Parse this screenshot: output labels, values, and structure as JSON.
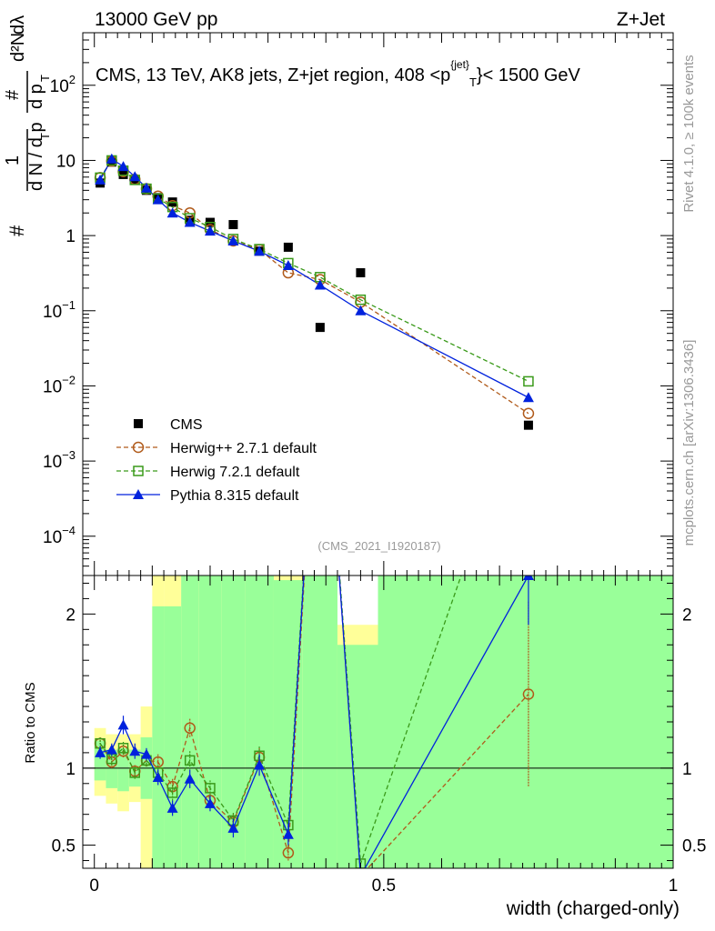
{
  "header": {
    "left": "13000 GeV pp",
    "right": "Z+Jet"
  },
  "side_labels": {
    "rivet": "Rivet 4.1.0, ≥ 100k events",
    "mcplots": "mcplots.cern.ch [arXiv:1306.3436]"
  },
  "colors": {
    "cms": "#000000",
    "herwigpp": "#b05a1a",
    "herwig7": "#3a9a1a",
    "pythia": "#0022dd",
    "band_green": "#99ff99",
    "band_yellow": "#ffff99"
  },
  "chart_data": [
    {
      "type": "scatter",
      "name": "main",
      "title": "CMS, 13 TeV, AK8 jets, Z+jet region, 408 <p_T^{jet}< 1500 GeV",
      "ylabel": "1/dN/dp_T  d^2N/dp_T dλ",
      "ylabel_parts": {
        "pre": "#",
        "num1": "1",
        "den1": "d N / d p",
        "den1_sub": "T",
        "num2": "#",
        "num2_sub": "",
        "mid_num": "#",
        "mid_den": "d p",
        "mid_den_sub": "T",
        "d2n": "d²N",
        "dl": "dλ"
      },
      "yscale": "log",
      "ylim": [
        3e-05,
        500
      ],
      "xlim": [
        -0.02,
        1.0
      ],
      "yticks": [
        {
          "v": 0.0001,
          "base": "10",
          "exp": "−4"
        },
        {
          "v": 0.001,
          "base": "10",
          "exp": "−3"
        },
        {
          "v": 0.01,
          "base": "10",
          "exp": "−2"
        },
        {
          "v": 0.1,
          "base": "10",
          "exp": "−1"
        },
        {
          "v": 1,
          "base": "1",
          "exp": ""
        },
        {
          "v": 10,
          "base": "10",
          "exp": ""
        },
        {
          "v": 100,
          "base": "10",
          "exp": "2"
        }
      ],
      "watermark": "(CMS_2021_I1920187)",
      "legend_position": "bottom-left",
      "series": [
        {
          "name": "CMS",
          "marker": "square",
          "color": "#000000",
          "dashed": false,
          "line": false,
          "x": [
            0.01,
            0.03,
            0.05,
            0.07,
            0.09,
            0.11,
            0.135,
            0.165,
            0.2,
            0.24,
            0.285,
            0.335,
            0.39,
            0.46,
            0.75
          ],
          "y": [
            5.0,
            9.5,
            6.5,
            5.5,
            4.0,
            3.2,
            2.8,
            1.6,
            1.5,
            1.4,
            0.62,
            0.7,
            0.06,
            0.32,
            0.003
          ]
        },
        {
          "name": "Herwig++ 2.7.1 default",
          "marker": "circle",
          "color": "#b05a1a",
          "dashed": true,
          "line": true,
          "x": [
            0.01,
            0.03,
            0.05,
            0.07,
            0.09,
            0.11,
            0.135,
            0.165,
            0.2,
            0.24,
            0.285,
            0.335,
            0.39,
            0.46,
            0.75
          ],
          "y": [
            5.9,
            9.8,
            7.1,
            5.6,
            4.2,
            3.35,
            2.5,
            2.0,
            1.2,
            0.85,
            0.65,
            0.32,
            0.26,
            0.13,
            0.0043
          ]
        },
        {
          "name": "Herwig 7.2.1 default",
          "marker": "open-square",
          "color": "#3a9a1a",
          "dashed": true,
          "line": true,
          "x": [
            0.01,
            0.03,
            0.05,
            0.07,
            0.09,
            0.11,
            0.135,
            0.165,
            0.2,
            0.24,
            0.285,
            0.335,
            0.39,
            0.46,
            0.75
          ],
          "y": [
            5.9,
            10.0,
            7.3,
            5.5,
            4.2,
            3.1,
            2.4,
            1.7,
            1.3,
            0.9,
            0.66,
            0.43,
            0.28,
            0.14,
            0.0115
          ]
        },
        {
          "name": "Pythia 8.315 default",
          "marker": "triangle",
          "color": "#0022dd",
          "dashed": false,
          "line": true,
          "x": [
            0.01,
            0.03,
            0.05,
            0.07,
            0.09,
            0.11,
            0.135,
            0.165,
            0.2,
            0.24,
            0.285,
            0.335,
            0.39,
            0.46,
            0.75
          ],
          "y": [
            5.5,
            10.5,
            8.3,
            6.1,
            4.3,
            3.0,
            2.0,
            1.5,
            1.15,
            0.85,
            0.62,
            0.4,
            0.22,
            0.1,
            0.007
          ]
        }
      ]
    },
    {
      "type": "line",
      "name": "ratio",
      "ylabel": "Ratio to CMS",
      "xlabel": "width (charged-only)",
      "ylim": [
        0.35,
        2.25
      ],
      "xlim": [
        -0.02,
        1.0
      ],
      "reference": 1,
      "yticks": [
        0.5,
        1,
        2
      ],
      "xticks": [
        {
          "v": 0,
          "label": "0"
        },
        {
          "v": 0.5,
          "label": "0.5"
        },
        {
          "v": 1,
          "label": "1"
        }
      ],
      "bands": [
        {
          "x0": 0.0,
          "x1": 0.02,
          "g": [
            0.92,
            1.18
          ],
          "yl": [
            0.82,
            1.26
          ]
        },
        {
          "x0": 0.02,
          "x1": 0.04,
          "g": [
            0.87,
            1.12
          ],
          "yl": [
            0.77,
            1.22
          ]
        },
        {
          "x0": 0.04,
          "x1": 0.06,
          "g": [
            0.85,
            1.13
          ],
          "yl": [
            0.72,
            1.22
          ]
        },
        {
          "x0": 0.06,
          "x1": 0.08,
          "g": [
            0.88,
            1.12
          ],
          "yl": [
            0.78,
            1.22
          ]
        },
        {
          "x0": 0.08,
          "x1": 0.1,
          "g": [
            0.8,
            1.2
          ],
          "yl": [
            0.35,
            1.4
          ]
        },
        {
          "x0": 0.1,
          "x1": 0.12,
          "g": [
            0.35,
            2.05
          ],
          "yl": [
            0.35,
            2.25
          ]
        },
        {
          "x0": 0.12,
          "x1": 0.15,
          "g": [
            0.35,
            2.05
          ],
          "yl": [
            0.35,
            2.25
          ]
        },
        {
          "x0": 0.15,
          "x1": 0.18,
          "g": [
            0.35,
            2.25
          ],
          "yl": [
            0.35,
            2.25
          ]
        },
        {
          "x0": 0.18,
          "x1": 0.22,
          "g": [
            0.35,
            2.25
          ],
          "yl": [
            0.35,
            2.25
          ]
        },
        {
          "x0": 0.22,
          "x1": 0.26,
          "g": [
            0.35,
            2.25
          ],
          "yl": [
            0.35,
            2.25
          ]
        },
        {
          "x0": 0.26,
          "x1": 0.31,
          "g": [
            0.35,
            2.25
          ],
          "yl": [
            0.35,
            2.25
          ]
        },
        {
          "x0": 0.31,
          "x1": 0.36,
          "g": [
            0.35,
            2.22
          ],
          "yl": [
            0.35,
            2.25
          ]
        },
        {
          "x0": 0.36,
          "x1": 0.42,
          "g": [
            0.35,
            2.25
          ],
          "yl": [
            0.35,
            2.25
          ]
        },
        {
          "x0": 0.42,
          "x1": 0.49,
          "g": [
            0.35,
            1.8
          ],
          "yl": [
            0.35,
            1.93
          ]
        },
        {
          "x0": 0.49,
          "x1": 1.0,
          "g": [
            0.35,
            2.25
          ],
          "yl": [
            0.35,
            2.25
          ]
        }
      ],
      "series": [
        {
          "name": "Herwig++ 2.7.1 default",
          "x": [
            0.01,
            0.03,
            0.05,
            0.07,
            0.09,
            0.11,
            0.135,
            0.165,
            0.2,
            0.24,
            0.285,
            0.335,
            0.39,
            0.46,
            0.75
          ],
          "y": [
            1.16,
            1.04,
            1.11,
            0.98,
            1.05,
            1.04,
            0.88,
            1.26,
            0.79,
            0.65,
            1.07,
            0.45,
            4.0,
            0.3,
            1.48
          ],
          "err": [
            0.04,
            0.04,
            0.04,
            0.04,
            0.04,
            0.05,
            0.05,
            0.06,
            0.05,
            0.05,
            0.06,
            0.05,
            0,
            0.02,
            0.6
          ]
        },
        {
          "name": "Herwig 7.2.1 default",
          "x": [
            0.01,
            0.03,
            0.05,
            0.07,
            0.09,
            0.11,
            0.135,
            0.165,
            0.2,
            0.24,
            0.285,
            0.335,
            0.39,
            0.46,
            0.75
          ],
          "y": [
            1.16,
            1.06,
            1.13,
            0.97,
            1.05,
            0.97,
            0.84,
            1.05,
            0.87,
            0.66,
            1.08,
            0.63,
            4.0,
            0.38,
            3.5
          ],
          "err": [
            0.04,
            0.04,
            0.04,
            0.04,
            0.04,
            0.05,
            0.05,
            0.06,
            0.05,
            0.05,
            0.06,
            0.05,
            0,
            0.03,
            0
          ]
        },
        {
          "name": "Pythia 8.315 default",
          "x": [
            0.01,
            0.03,
            0.05,
            0.07,
            0.09,
            0.11,
            0.135,
            0.165,
            0.2,
            0.24,
            0.285,
            0.335,
            0.39,
            0.46,
            0.75
          ],
          "y": [
            1.1,
            1.12,
            1.28,
            1.11,
            1.09,
            0.94,
            0.74,
            0.93,
            0.77,
            0.61,
            1.02,
            0.57,
            4.0,
            0.3,
            2.25
          ],
          "err": [
            0.04,
            0.04,
            0.06,
            0.05,
            0.04,
            0.05,
            0.05,
            0.06,
            0.05,
            0.06,
            0.07,
            0.07,
            0,
            0.02,
            0.32
          ]
        }
      ]
    }
  ]
}
